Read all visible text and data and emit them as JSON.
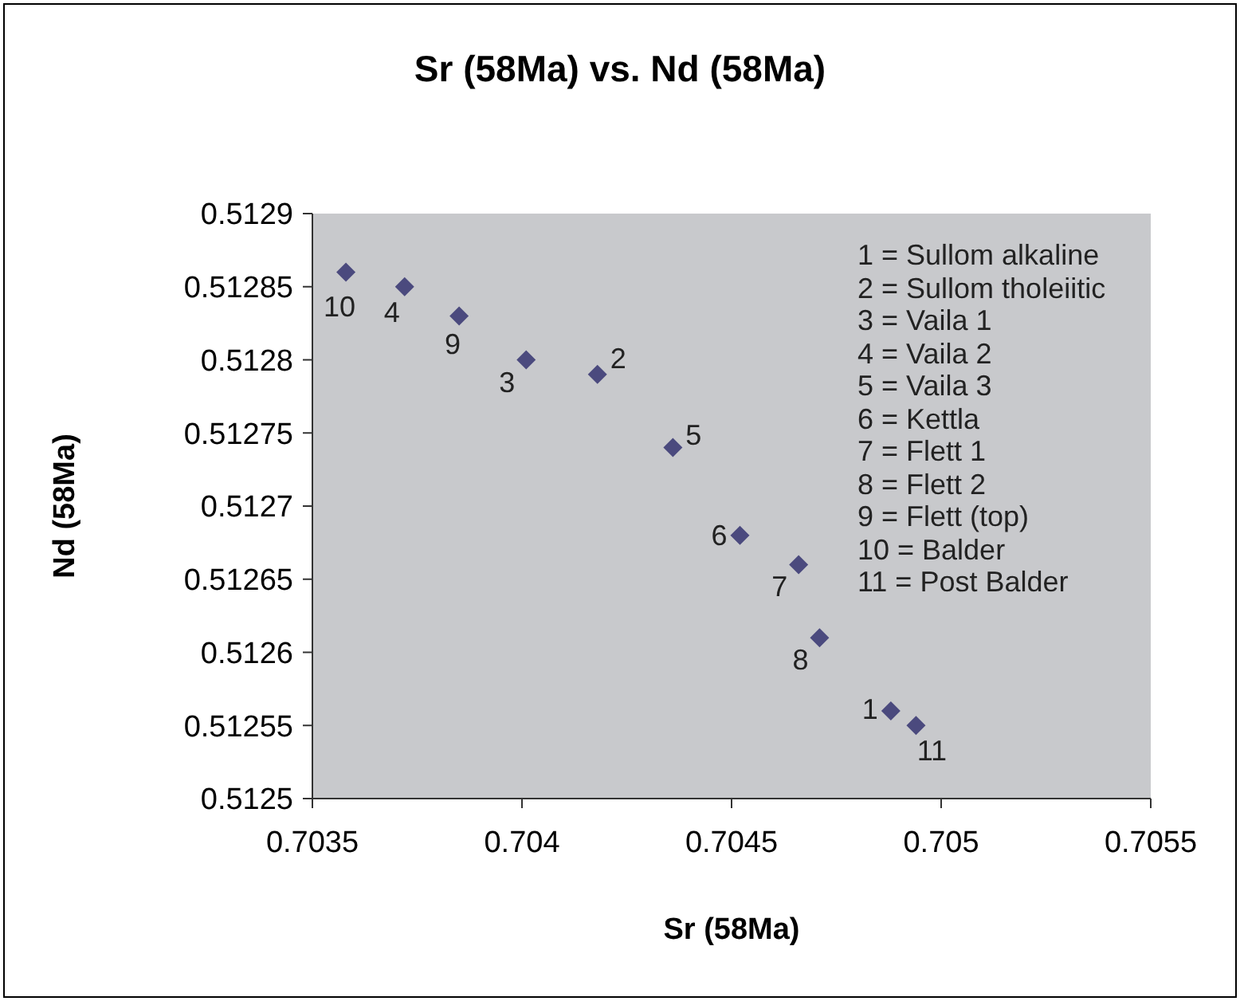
{
  "chart_data": {
    "type": "scatter",
    "title": "Sr (58Ma) vs. Nd (58Ma)",
    "xlabel": "Sr (58Ma)",
    "ylabel": "Nd (58Ma)",
    "annotations": [
      "1 = Sullom alkaline",
      "2 = Sullom tholeiitic",
      "3 = Vaila 1",
      "4 = Vaila 2",
      "5 = Vaila 3",
      "6 = Kettla",
      "7 = Flett 1",
      "8 = Flett 2",
      "9 = Flett (top)",
      "10 = Balder",
      "11 = Post Balder",
      {
        "text": "1",
        "x": 0.70488,
        "y": 0.51256
      },
      {
        "text": "2",
        "x": 0.70418,
        "y": 0.51279
      },
      {
        "text": "3",
        "x": 0.70401,
        "y": 0.5128
      },
      {
        "text": "4",
        "x": 0.70372,
        "y": 0.51285
      },
      {
        "text": "5",
        "x": 0.70436,
        "y": 0.51274
      },
      {
        "text": "6",
        "x": 0.70452,
        "y": 0.51268
      },
      {
        "text": "7",
        "x": 0.70466,
        "y": 0.51266
      },
      {
        "text": "8",
        "x": 0.70471,
        "y": 0.51261
      },
      {
        "text": "9",
        "x": 0.70385,
        "y": 0.51283
      },
      {
        "text": "10",
        "x": 0.70358,
        "y": 0.51286
      },
      {
        "text": "11",
        "x": 0.70494,
        "y": 0.51255
      }
    ],
    "x": [
      0.70488,
      0.70418,
      0.70401,
      0.70372,
      0.70436,
      0.70452,
      0.70466,
      0.70471,
      0.70385,
      0.70358,
      0.70494
    ],
    "series": [
      {
        "color": "#4b4a7e",
        "values": [
          0.51256,
          0.51279,
          0.5128,
          0.51285,
          0.51274,
          0.51268,
          0.51266,
          0.51261,
          0.51283,
          0.51286,
          0.51255
        ]
      }
    ],
    "xlim": [
      0.7035,
      0.7055
    ],
    "xticks": [
      0.7035,
      0.704,
      0.7045,
      0.705,
      0.7055
    ],
    "ylim": [
      0.5125,
      0.5129
    ],
    "yticks": [
      0.5125,
      0.51255,
      0.5126,
      0.51265,
      0.5127,
      0.51275,
      0.5128,
      0.51285,
      0.5129
    ],
    "grid": false,
    "marker": "diamond"
  }
}
